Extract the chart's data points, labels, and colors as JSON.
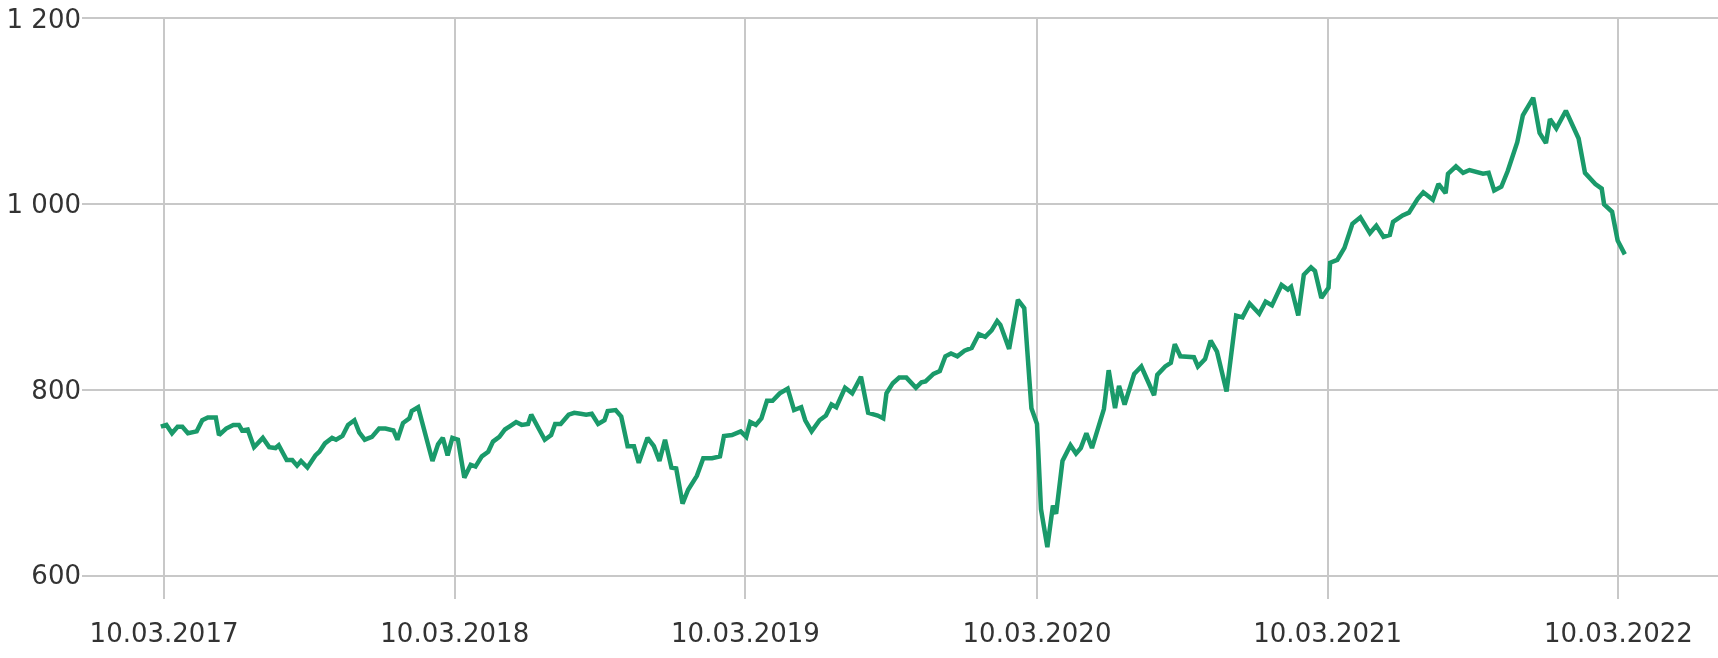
{
  "chart_data": {
    "type": "line",
    "grid": true,
    "marker": "none",
    "line_style": "solid",
    "xlim": [
      "2016-11-27",
      "2022-07-13"
    ],
    "xticks": [
      {
        "value": "2017-03-10",
        "label": "10.03.2017"
      },
      {
        "value": "2018-03-10",
        "label": "10.03.2018"
      },
      {
        "value": "2019-03-10",
        "label": "10.03.2019"
      },
      {
        "value": "2020-03-10",
        "label": "10.03.2020"
      },
      {
        "value": "2021-03-10",
        "label": "10.03.2021"
      },
      {
        "value": "2022-03-10",
        "label": "10.03.2022"
      }
    ],
    "ylim": [
      600,
      1200
    ],
    "yticks": [
      600,
      800,
      {
        "value": 1000,
        "label": "1 000"
      },
      {
        "value": 1200,
        "label": "1 200"
      }
    ],
    "x": [
      "2017-03-06",
      "2017-03-13",
      "2017-03-20",
      "2017-03-27",
      "2017-04-02",
      "2017-04-09",
      "2017-04-20",
      "2017-04-27",
      "2017-05-04",
      "2017-05-14",
      "2017-05-18",
      "2017-05-27",
      "2017-06-05",
      "2017-06-12",
      "2017-06-16",
      "2017-06-23",
      "2017-07-01",
      "2017-07-12",
      "2017-07-20",
      "2017-07-28",
      "2017-08-01",
      "2017-08-11",
      "2017-08-18",
      "2017-08-24",
      "2017-08-29",
      "2017-09-06",
      "2017-09-16",
      "2017-09-21",
      "2017-09-28",
      "2017-10-07",
      "2017-10-12",
      "2017-10-20",
      "2017-10-27",
      "2017-11-04",
      "2017-11-10",
      "2017-11-17",
      "2017-11-26",
      "2017-12-05",
      "2017-12-13",
      "2017-12-23",
      "2017-12-28",
      "2018-01-04",
      "2018-01-12",
      "2018-01-15",
      "2018-01-23",
      "2018-02-10",
      "2018-02-17",
      "2018-02-23",
      "2018-03-01",
      "2018-03-07",
      "2018-03-14",
      "2018-03-22",
      "2018-03-30",
      "2018-04-05",
      "2018-04-13",
      "2018-04-21",
      "2018-04-27",
      "2018-05-05",
      "2018-05-12",
      "2018-05-19",
      "2018-05-26",
      "2018-06-02",
      "2018-06-10",
      "2018-06-14",
      "2018-06-24",
      "2018-07-01",
      "2018-07-09",
      "2018-07-14",
      "2018-07-21",
      "2018-07-31",
      "2018-08-07",
      "2018-08-15",
      "2018-08-22",
      "2018-08-29",
      "2018-09-06",
      "2018-09-14",
      "2018-09-18",
      "2018-09-28",
      "2018-10-05",
      "2018-10-13",
      "2018-10-21",
      "2018-10-27",
      "2018-11-07",
      "2018-11-15",
      "2018-11-22",
      "2018-11-29",
      "2018-12-07",
      "2018-12-13",
      "2018-12-21",
      "2018-12-28",
      "2019-01-08",
      "2019-01-16",
      "2019-01-27",
      "2019-02-06",
      "2019-02-11",
      "2019-02-21",
      "2019-03-04",
      "2019-03-11",
      "2019-03-16",
      "2019-03-23",
      "2019-03-30",
      "2019-04-06",
      "2019-04-13",
      "2019-04-22",
      "2019-05-02",
      "2019-05-10",
      "2019-05-19",
      "2019-05-24",
      "2019-06-01",
      "2019-06-11",
      "2019-06-19",
      "2019-06-26",
      "2019-07-02",
      "2019-07-13",
      "2019-07-22",
      "2019-08-02",
      "2019-08-11",
      "2019-08-23",
      "2019-08-30",
      "2019-09-03",
      "2019-09-11",
      "2019-09-19",
      "2019-09-28",
      "2019-10-10",
      "2019-10-17",
      "2019-10-22",
      "2019-11-01",
      "2019-11-09",
      "2019-11-16",
      "2019-11-23",
      "2019-12-01",
      "2019-12-10",
      "2019-12-19",
      "2019-12-28",
      "2020-01-05",
      "2020-01-13",
      "2020-01-20",
      "2020-01-24",
      "2020-02-04",
      "2020-02-15",
      "2020-02-23",
      "2020-03-03",
      "2020-03-10",
      "2020-03-15",
      "2020-03-23",
      "2020-03-30",
      "2020-04-03",
      "2020-04-11",
      "2020-04-21",
      "2020-04-28",
      "2020-05-04",
      "2020-05-11",
      "2020-05-18",
      "2020-05-28",
      "2020-06-02",
      "2020-06-08",
      "2020-06-16",
      "2020-06-21",
      "2020-06-28",
      "2020-07-10",
      "2020-07-19",
      "2020-08-04",
      "2020-08-08",
      "2020-08-18",
      "2020-08-25",
      "2020-08-30",
      "2020-09-06",
      "2020-09-23",
      "2020-09-28",
      "2020-10-07",
      "2020-10-14",
      "2020-10-22",
      "2020-11-03",
      "2020-11-15",
      "2020-11-23",
      "2020-12-02",
      "2020-12-14",
      "2020-12-22",
      "2020-12-30",
      "2021-01-11",
      "2021-01-19",
      "2021-01-23",
      "2021-02-01",
      "2021-02-08",
      "2021-02-17",
      "2021-02-22",
      "2021-03-02",
      "2021-03-11",
      "2021-03-13",
      "2021-03-22",
      "2021-03-31",
      "2021-04-10",
      "2021-04-20",
      "2021-05-02",
      "2021-05-10",
      "2021-05-19",
      "2021-05-27",
      "2021-05-31",
      "2021-06-12",
      "2021-06-20",
      "2021-07-01",
      "2021-07-08",
      "2021-07-20",
      "2021-07-27",
      "2021-08-05",
      "2021-08-08",
      "2021-08-18",
      "2021-08-27",
      "2021-09-04",
      "2021-09-21",
      "2021-09-28",
      "2021-10-05",
      "2021-10-14",
      "2021-10-22",
      "2021-11-03",
      "2021-11-10",
      "2021-11-23",
      "2021-12-01",
      "2021-12-09",
      "2021-12-14",
      "2021-12-22",
      "2022-01-03",
      "2022-01-19",
      "2022-01-27",
      "2022-02-09",
      "2022-02-17",
      "2022-02-20",
      "2022-03-02",
      "2022-03-09",
      "2022-03-18"
    ],
    "series": [
      {
        "color": "#1a9a6a",
        "values": [
          760,
          762,
          753,
          760,
          760,
          753,
          755,
          767,
          770,
          770,
          751,
          758,
          762,
          762,
          756,
          757,
          738,
          748,
          738,
          737,
          740,
          724,
          724,
          718,
          723,
          716,
          729,
          733,
          742,
          748,
          746,
          750,
          762,
          767,
          754,
          746,
          749,
          758,
          758,
          756,
          746,
          764,
          769,
          777,
          781,
          723,
          741,
          748,
          729,
          748,
          746,
          705,
          719,
          717,
          728,
          733,
          744,
          749,
          757,
          761,
          765,
          762,
          763,
          773,
          757,
          746,
          751,
          763,
          763,
          773,
          775,
          774,
          773,
          774,
          763,
          767,
          777,
          778,
          771,
          739,
          739,
          721,
          748,
          739,
          723,
          746,
          716,
          715,
          677,
          692,
          707,
          726,
          726,
          728,
          750,
          751,
          755,
          749,
          765,
          762,
          769,
          788,
          788,
          796,
          801,
          778,
          781,
          767,
          755,
          767,
          772,
          784,
          781,
          802,
          796,
          814,
          775,
          772,
          769,
          796,
          807,
          813,
          813,
          802,
          808,
          809,
          817,
          820,
          836,
          839,
          836,
          842,
          845,
          860,
          857,
          864,
          874,
          870,
          844,
          897,
          888,
          780,
          763,
          671,
          630,
          675,
          666,
          723,
          740,
          731,
          737,
          753,
          737,
          765,
          779,
          821,
          780,
          804,
          784,
          817,
          825,
          794,
          816,
          825,
          829,
          849,
          836,
          835,
          825,
          833,
          853,
          841,
          798,
          880,
          878,
          893,
          882,
          895,
          891,
          913,
          908,
          911,
          880,
          924,
          932,
          928,
          899,
          910,
          937,
          940,
          953,
          979,
          986,
          969,
          977,
          965,
          967,
          981,
          988,
          991,
          1006,
          1013,
          1005,
          1022,
          1012,
          1033,
          1041,
          1034,
          1037,
          1033,
          1034,
          1015,
          1019,
          1036,
          1067,
          1096,
          1115,
          1077,
          1066,
          1092,
          1082,
          1101,
          1071,
          1034,
          1022,
          1017,
          1000,
          992,
          961,
          946
        ]
      }
    ]
  }
}
